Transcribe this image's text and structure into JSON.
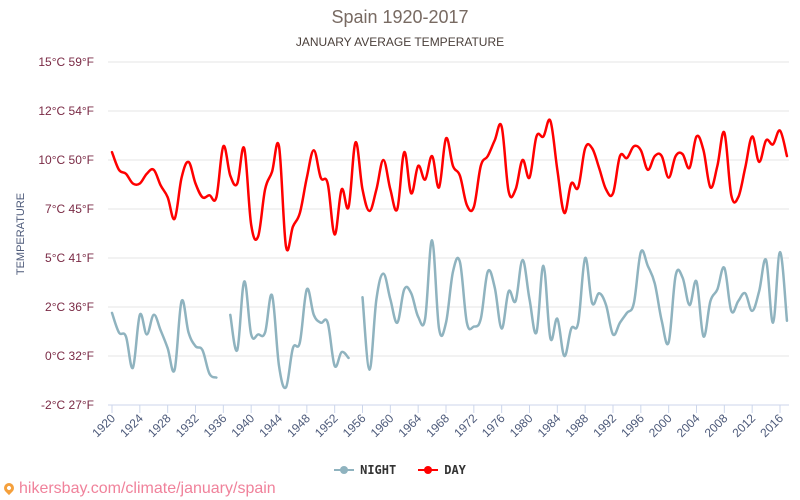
{
  "chart_data": {
    "type": "line",
    "title": "Spain 1920-2017",
    "subtitle": "JANUARY AVERAGE TEMPERATURE",
    "xlabel": "",
    "ylabel": "TEMPERATURE",
    "ylim": [
      -2.5,
      15
    ],
    "xlim": [
      1920,
      2017
    ],
    "grid": true,
    "legend_position": "bottom-center",
    "y_ticks": [
      {
        "value": 15,
        "label": "15°C 59°F"
      },
      {
        "value": 12.5,
        "label": "12°C 54°F"
      },
      {
        "value": 10,
        "label": "10°C 50°F"
      },
      {
        "value": 7.5,
        "label": "7°C 45°F"
      },
      {
        "value": 5,
        "label": "5°C 41°F"
      },
      {
        "value": 2.5,
        "label": "2°C 36°F"
      },
      {
        "value": 0,
        "label": "0°C 32°F"
      },
      {
        "value": -2.5,
        "label": "-2°C 27°F"
      }
    ],
    "x_ticks": [
      1920,
      1924,
      1928,
      1932,
      1936,
      1940,
      1944,
      1948,
      1952,
      1956,
      1960,
      1964,
      1968,
      1972,
      1976,
      1980,
      1984,
      1988,
      1992,
      1996,
      2000,
      2004,
      2008,
      2012,
      2016
    ],
    "x_start": 1920,
    "series": [
      {
        "name": "NIGHT",
        "color": "#8fb3bf",
        "values": [
          2.2,
          1.2,
          1.0,
          -0.6,
          2.1,
          1.1,
          2.1,
          1.3,
          0.4,
          -0.7,
          2.8,
          1.2,
          0.5,
          0.3,
          -0.9,
          -1.1,
          null,
          2.1,
          0.3,
          3.8,
          1.1,
          1.1,
          1.2,
          3.1,
          -0.5,
          -1.6,
          0.4,
          0.7,
          3.4,
          2.1,
          1.7,
          1.7,
          -0.5,
          0.2,
          -0.1,
          null,
          3.0,
          -0.7,
          2.9,
          4.2,
          2.9,
          1.7,
          3.4,
          3.2,
          2.0,
          1.9,
          5.9,
          1.4,
          1.7,
          4.3,
          4.8,
          1.7,
          1.5,
          1.9,
          4.3,
          3.5,
          1.4,
          3.3,
          2.8,
          4.9,
          2.9,
          1.2,
          4.6,
          0.9,
          1.9,
          0.0,
          1.4,
          1.7,
          5.0,
          2.7,
          3.2,
          2.6,
          1.1,
          1.7,
          2.2,
          2.7,
          5.3,
          4.6,
          3.7,
          1.8,
          0.7,
          4.1,
          4.0,
          2.6,
          3.8,
          1.0,
          2.8,
          3.4,
          4.5,
          2.3,
          2.8,
          3.2,
          2.3,
          3.3,
          4.9,
          1.7,
          5.3,
          1.8
        ]
      },
      {
        "name": "DAY",
        "color": "#ff0000",
        "values": [
          10.4,
          9.5,
          9.3,
          8.8,
          8.8,
          9.3,
          9.5,
          8.7,
          8.1,
          7.0,
          9.1,
          9.9,
          8.8,
          8.1,
          8.2,
          8.1,
          10.7,
          9.2,
          8.8,
          10.6,
          6.7,
          6.1,
          8.5,
          9.4,
          10.7,
          5.6,
          6.6,
          7.3,
          9.1,
          10.5,
          9.1,
          8.8,
          6.2,
          8.5,
          7.6,
          10.9,
          8.5,
          7.4,
          8.5,
          10.0,
          8.5,
          7.5,
          10.4,
          8.3,
          9.7,
          9.0,
          10.2,
          8.6,
          11.1,
          9.7,
          9.2,
          7.7,
          7.6,
          9.7,
          10.2,
          11.0,
          11.7,
          8.4,
          8.5,
          10.0,
          9.1,
          11.2,
          11.2,
          12.0,
          9.5,
          7.3,
          8.8,
          8.6,
          10.6,
          10.6,
          9.6,
          8.5,
          8.3,
          10.2,
          10.1,
          10.7,
          10.5,
          9.5,
          10.2,
          10.2,
          9.1,
          10.2,
          10.3,
          9.6,
          11.2,
          10.5,
          8.6,
          9.7,
          11.4,
          8.2,
          8.1,
          9.6,
          11.2,
          9.9,
          11.0,
          10.8,
          11.5,
          10.2
        ]
      }
    ]
  },
  "legend": {
    "items": [
      {
        "label": "NIGHT",
        "color": "#8fb3bf"
      },
      {
        "label": "DAY",
        "color": "#ff0000"
      }
    ]
  },
  "watermark": {
    "text": "hikersbay.com/climate/january/spain",
    "icon": "location-pin-icon"
  }
}
